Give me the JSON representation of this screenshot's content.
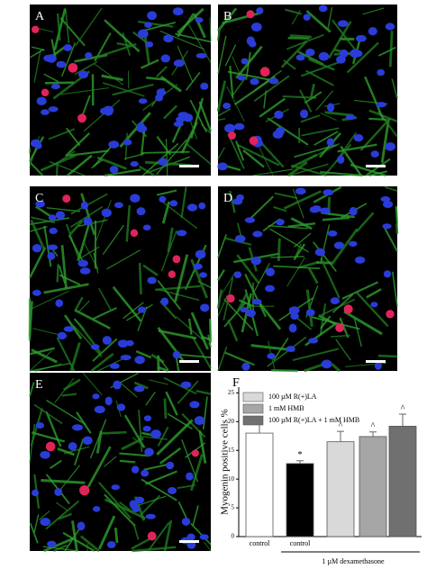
{
  "panels": [
    "A",
    "B",
    "C",
    "D",
    "E"
  ],
  "chart_data": {
    "type": "bar",
    "label": "F",
    "ylabel": "Myogenin positive cells %",
    "categories": [
      "control",
      "control",
      null,
      null,
      null
    ],
    "group_label": "1 µM dexamethasone",
    "values": [
      18,
      12.7,
      16.5,
      17.4,
      19.2
    ],
    "errors": [
      2.5,
      0.5,
      1.8,
      0.8,
      2.1
    ],
    "colors": [
      "#ffffff",
      "#000000",
      "#d9d9d9",
      "#a6a6a6",
      "#707070"
    ],
    "markers": [
      null,
      "*",
      "^",
      "^",
      "^"
    ],
    "legend": [
      {
        "name": "100 µM  R(+)LA",
        "color": "#d9d9d9"
      },
      {
        "name": "1 mM HMB",
        "color": "#a6a6a6"
      },
      {
        "name": "100 µM  R(+)LA + 1 mM HMB",
        "color": "#707070"
      }
    ],
    "ylim": [
      0,
      26
    ],
    "yticks": [
      0,
      5,
      10,
      15,
      20,
      25
    ]
  }
}
